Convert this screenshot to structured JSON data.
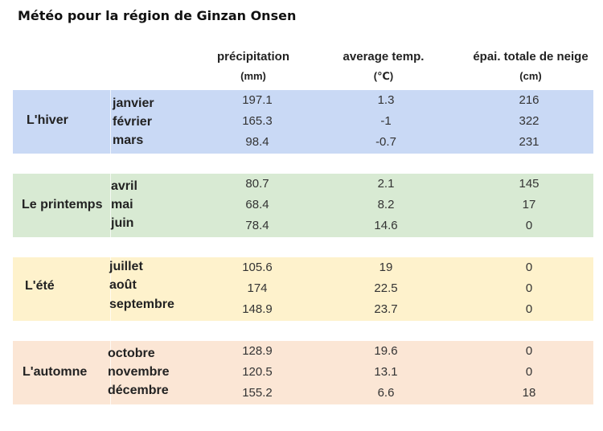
{
  "title": "Météo pour la région de Ginzan Onsen",
  "headers": {
    "precipitation": "précipitation",
    "precipitation_unit": "(mm)",
    "temperature": "average temp.",
    "temperature_unit": "(℃)",
    "snow": "épai. totale de neige",
    "snow_unit": "(cm)"
  },
  "colors": {
    "winter": "#c9d9f5",
    "spring": "#d8ead3",
    "summer": "#fef2cc",
    "autumn": "#fbe6d5"
  },
  "seasons": [
    {
      "name": "L'hiver",
      "months": [
        {
          "month": "janvier",
          "precip": "197.1",
          "temp": "1.3",
          "snow": "216"
        },
        {
          "month": "février",
          "precip": "165.3",
          "temp": "-1",
          "snow": "322"
        },
        {
          "month": "mars",
          "precip": "98.4",
          "temp": "-0.7",
          "snow": "231"
        }
      ]
    },
    {
      "name": "Le printemps",
      "months": [
        {
          "month": "avril",
          "precip": "80.7",
          "temp": "2.1",
          "snow": "145"
        },
        {
          "month": "mai",
          "precip": "68.4",
          "temp": "8.2",
          "snow": "17"
        },
        {
          "month": "juin",
          "precip": "78.4",
          "temp": "14.6",
          "snow": "0"
        }
      ]
    },
    {
      "name": "L'été",
      "months": [
        {
          "month": "juillet",
          "precip": "105.6",
          "temp": "19",
          "snow": "0"
        },
        {
          "month": "août",
          "precip": "174",
          "temp": "22.5",
          "snow": "0"
        },
        {
          "month": "septembre",
          "precip": "148.9",
          "temp": "23.7",
          "snow": "0"
        }
      ]
    },
    {
      "name": "L'automne",
      "months": [
        {
          "month": "octobre",
          "precip": "128.9",
          "temp": "19.6",
          "snow": "0"
        },
        {
          "month": "novembre",
          "precip": "120.5",
          "temp": "13.1",
          "snow": "0"
        },
        {
          "month": "décembre",
          "precip": "155.2",
          "temp": "6.6",
          "snow": "18"
        }
      ]
    }
  ]
}
